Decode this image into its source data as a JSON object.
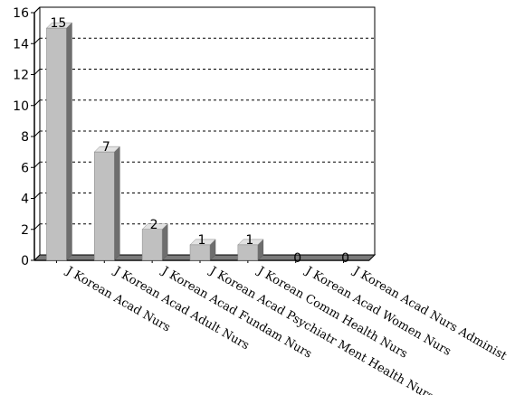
{
  "chart_data": {
    "type": "bar",
    "title": "",
    "xlabel": "",
    "ylabel": "",
    "ylim": [
      0,
      16
    ],
    "yticks": [
      0,
      2,
      4,
      6,
      8,
      10,
      12,
      14,
      16
    ],
    "grid": true,
    "categories": [
      "J Korean Acad Nurs",
      "J Korean Acad Adult Nurs",
      "J Korean Acad Fundam Nurs",
      "J Korean Acad Psychiatr Ment Health Nurs",
      "J Korean Comm Health Nurs",
      "J Korean Acad Women Nurs",
      "J Korean Acad Nurs Administ"
    ],
    "values": [
      15,
      7,
      2,
      1,
      1,
      0,
      0
    ],
    "data_labels": [
      "15",
      "7",
      "2",
      "1",
      "1",
      "0",
      "0"
    ],
    "colors": {
      "bar_front": "#c0c0c0",
      "bar_side": "#6e6e6e",
      "bar_top": "#e2e2e2",
      "floor": "#7a7a7a",
      "grid": "#000000"
    }
  }
}
